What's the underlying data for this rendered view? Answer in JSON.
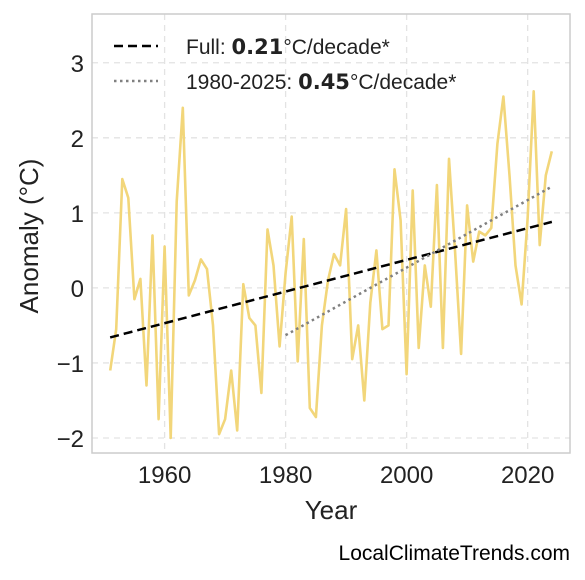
{
  "chart_data": {
    "type": "line",
    "xlabel": "Year",
    "ylabel": "Anomaly (°C)",
    "xlim": [
      1948,
      2027
    ],
    "ylim": [
      -2.2,
      3.65
    ],
    "xticks": [
      1960,
      1980,
      2000,
      2020
    ],
    "yticks": [
      3,
      2,
      1,
      0,
      -1,
      -2
    ],
    "ytick_labels": [
      "3",
      "2",
      "1",
      "0",
      "−1",
      "−2"
    ],
    "grid": true,
    "legend_position": "top-left",
    "series": [
      {
        "color": "#f2d67a",
        "x": [
          1951,
          1952,
          1953,
          1954,
          1955,
          1956,
          1957,
          1958,
          1959,
          1960,
          1961,
          1962,
          1963,
          1964,
          1965,
          1966,
          1967,
          1968,
          1969,
          1970,
          1971,
          1972,
          1973,
          1974,
          1975,
          1976,
          1977,
          1978,
          1979,
          1980,
          1981,
          1982,
          1983,
          1984,
          1985,
          1986,
          1987,
          1988,
          1989,
          1990,
          1991,
          1992,
          1993,
          1994,
          1995,
          1996,
          1997,
          1998,
          1999,
          2000,
          2001,
          2002,
          2003,
          2004,
          2005,
          2006,
          2007,
          2008,
          2009,
          2010,
          2011,
          2012,
          2013,
          2014,
          2015,
          2016,
          2017,
          2018,
          2019,
          2020,
          2021,
          2022,
          2023,
          2024
        ],
        "y": [
          -1.1,
          -0.55,
          1.45,
          1.2,
          -0.15,
          0.12,
          -1.3,
          0.7,
          -1.75,
          0.55,
          -2.0,
          1.15,
          2.4,
          -0.1,
          0.1,
          0.38,
          0.25,
          -0.5,
          -1.95,
          -1.75,
          -1.1,
          -1.9,
          0.05,
          -0.4,
          -0.5,
          -1.4,
          0.78,
          0.3,
          -0.78,
          0.2,
          0.95,
          -0.98,
          0.65,
          -1.6,
          -1.72,
          -0.5,
          0.1,
          0.45,
          0.3,
          1.05,
          -0.95,
          -0.5,
          -1.5,
          -0.2,
          0.5,
          -0.55,
          -0.5,
          1.58,
          0.9,
          -1.15,
          1.3,
          -0.8,
          0.3,
          -0.25,
          1.37,
          -0.8,
          1.72,
          0.5,
          -0.88,
          1.1,
          0.35,
          0.75,
          0.7,
          0.8,
          1.92,
          2.55,
          1.5,
          0.3,
          -0.22,
          0.92,
          2.62,
          0.57,
          1.5,
          1.82
        ]
      }
    ],
    "trendlines": [
      {
        "style": "dashed",
        "color": "#000000",
        "x": [
          1951,
          2024
        ],
        "y": [
          -0.66,
          0.88
        ]
      },
      {
        "style": "dotted",
        "color": "#808080",
        "x": [
          1980,
          2024
        ],
        "y": [
          -0.63,
          1.35
        ]
      }
    ],
    "legend": [
      {
        "style": "dashed",
        "prefix": "Full: ",
        "value": "0.21",
        "suffix": "°C/decade*"
      },
      {
        "style": "dotted",
        "prefix": "1980-2025: ",
        "value": "0.45",
        "suffix": "°C/decade*"
      }
    ]
  },
  "credit": "LocalClimateTrends.com"
}
